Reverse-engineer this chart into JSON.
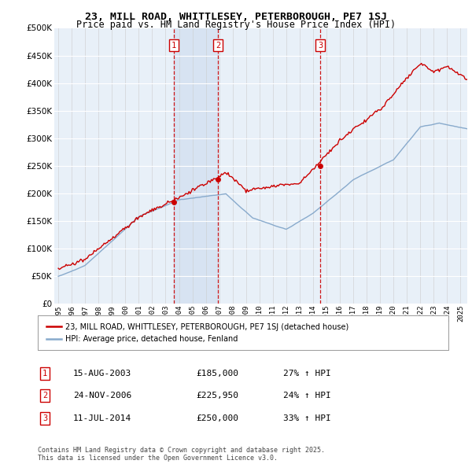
{
  "title": "23, MILL ROAD, WHITTLESEY, PETERBOROUGH, PE7 1SJ",
  "subtitle": "Price paid vs. HM Land Registry's House Price Index (HPI)",
  "legend_line1": "23, MILL ROAD, WHITTLESEY, PETERBOROUGH, PE7 1SJ (detached house)",
  "legend_line2": "HPI: Average price, detached house, Fenland",
  "footnote": "Contains HM Land Registry data © Crown copyright and database right 2025.\nThis data is licensed under the Open Government Licence v3.0.",
  "transactions": [
    {
      "num": 1,
      "date": "15-AUG-2003",
      "price": "£185,000",
      "pct": "27% ↑ HPI",
      "x": 2003.617,
      "price_val": 185000
    },
    {
      "num": 2,
      "date": "24-NOV-2006",
      "price": "£225,950",
      "pct": "24% ↑ HPI",
      "x": 2006.896,
      "price_val": 225950
    },
    {
      "num": 3,
      "date": "11-JUL-2014",
      "price": "£250,000",
      "pct": "33% ↑ HPI",
      "x": 2014.527,
      "price_val": 250000
    }
  ],
  "red_color": "#cc0000",
  "blue_color": "#88aacc",
  "shade_color": "#ddeeff",
  "bg_plot": "#e8f0f8",
  "grid_color": "#ffffff",
  "ylim": [
    0,
    500000
  ],
  "yticks": [
    0,
    50000,
    100000,
    150000,
    200000,
    250000,
    300000,
    350000,
    400000,
    450000,
    500000
  ],
  "xlim_start": 1994.7,
  "xlim_end": 2025.5
}
